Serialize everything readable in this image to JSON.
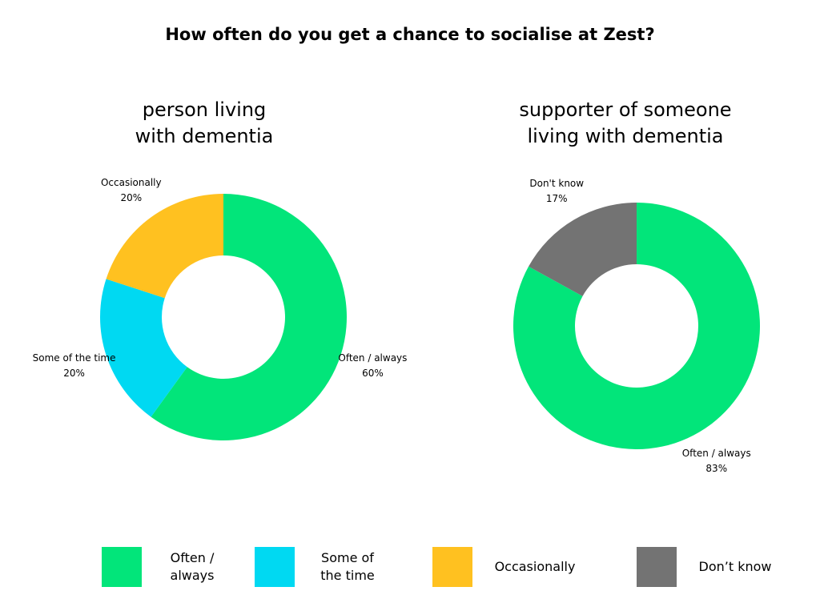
{
  "title": "How often do you get a chance to socialise at Zest?",
  "chart_data": [
    {
      "type": "donut",
      "title": [
        "person living",
        "with dementia"
      ],
      "categories": [
        "Often / always",
        "Some of the time",
        "Occasionally"
      ],
      "values": [
        60,
        20,
        20
      ],
      "value_labels": [
        "60%",
        "20%",
        "20%"
      ],
      "colors": [
        "#02e57a",
        "#00d9f2",
        "#ffc120"
      ]
    },
    {
      "type": "donut",
      "title": [
        "supporter of someone",
        "living with dementia"
      ],
      "categories": [
        "Often / always",
        "Don't know"
      ],
      "values": [
        83,
        17
      ],
      "value_labels": [
        "83%",
        "17%"
      ],
      "colors": [
        "#02e57a",
        "#737373"
      ]
    }
  ],
  "legend": {
    "items": [
      {
        "label": "Often / always",
        "color": "#02e57a"
      },
      {
        "label": "Some of the time",
        "color": "#00d9f2"
      },
      {
        "label": "Occasionally",
        "color": "#ffc120"
      },
      {
        "label": "Don’t know",
        "color": "#737373"
      }
    ]
  }
}
